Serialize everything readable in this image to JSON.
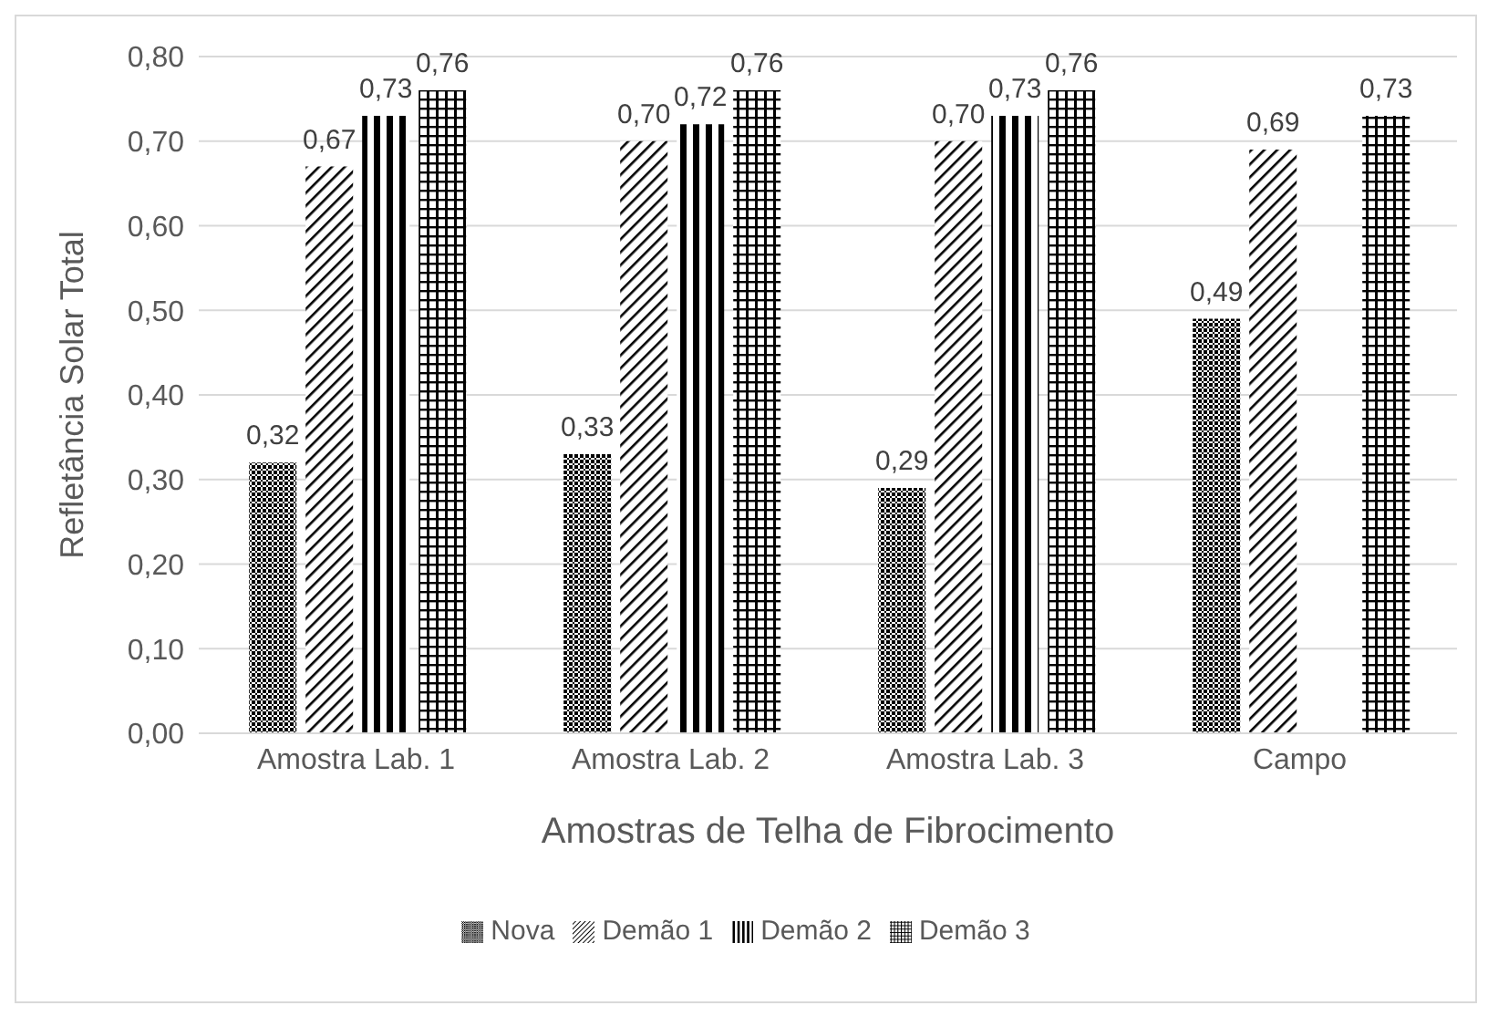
{
  "chart_data": {
    "type": "bar",
    "xlabel": "Amostras de Telha de Fibrocimento",
    "ylabel": "Refletância Solar Total",
    "categories": [
      "Amostra Lab. 1",
      "Amostra Lab. 2",
      "Amostra Lab. 3",
      "Campo"
    ],
    "series": [
      {
        "name": "Nova",
        "color": "#000000",
        "values": [
          0.32,
          0.33,
          0.29,
          0.49
        ],
        "value_labels": [
          "0,32",
          "0,33",
          "0,29",
          "0,49"
        ]
      },
      {
        "name": "Demão 1",
        "color": "#000000",
        "values": [
          0.67,
          0.7,
          0.7,
          0.69
        ],
        "value_labels": [
          "0,67",
          "0,70",
          "0,70",
          "0,69"
        ]
      },
      {
        "name": "Demão 2",
        "color": "#000000",
        "values": [
          0.73,
          0.72,
          0.73,
          null
        ],
        "value_labels": [
          "0,73",
          "0,72",
          "0,73",
          null
        ]
      },
      {
        "name": "Demão 3",
        "color": "#000000",
        "values": [
          0.76,
          0.76,
          0.76,
          0.73
        ],
        "value_labels": [
          "0,76",
          "0,76",
          "0,76",
          "0,73"
        ]
      }
    ],
    "ylim": [
      0,
      0.8
    ],
    "yticks": [
      {
        "value": 0,
        "label": "0,00"
      },
      {
        "value": 0.1,
        "label": "0,10"
      },
      {
        "value": 0.2,
        "label": "0,20"
      },
      {
        "value": 0.3,
        "label": "0,30"
      },
      {
        "value": 0.4,
        "label": "0,40"
      },
      {
        "value": 0.5,
        "label": "0,50"
      },
      {
        "value": 0.6,
        "label": "0,60"
      },
      {
        "value": 0.7,
        "label": "0,70"
      },
      {
        "value": 0.8,
        "label": "0,80"
      }
    ],
    "grid": "y",
    "legend": "bottom"
  }
}
